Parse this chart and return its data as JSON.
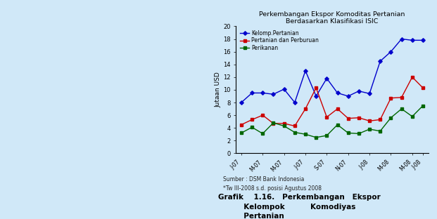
{
  "title_line1": "Perkembangan Ekspor Komoditas Pertanian",
  "title_line2": "Berdasarkan Klasifikasi ISIC",
  "ylabel": "Jutaan USD",
  "x_labels": [
    "J-07",
    "M-07",
    "M-07",
    "J-07",
    "S-07",
    "N-07",
    "J-08",
    "M-08",
    "M-08",
    "J-08"
  ],
  "kelomp_pertanian": [
    8.0,
    9.5,
    9.5,
    9.3,
    10.1,
    8.0,
    13.0,
    9.0,
    11.8,
    9.5,
    9.0,
    9.8,
    9.4,
    14.5,
    16.0,
    18.0,
    17.8,
    17.8
  ],
  "pertanian_perburuan": [
    4.5,
    5.3,
    6.0,
    4.7,
    4.7,
    4.3,
    7.0,
    10.3,
    5.7,
    7.0,
    5.5,
    5.6,
    5.1,
    5.3,
    8.7,
    8.8,
    12.0,
    10.3
  ],
  "perikanan": [
    3.2,
    4.1,
    3.1,
    4.8,
    4.3,
    3.3,
    3.0,
    2.5,
    2.8,
    4.5,
    3.2,
    3.1,
    3.8,
    3.5,
    5.6,
    7.0,
    5.8,
    7.5
  ],
  "color_kelomp": "#0000CC",
  "color_pertanian": "#CC0000",
  "color_perikanan": "#006600",
  "background_color": "#d0e8f8",
  "ylim": [
    0,
    20
  ],
  "yticks": [
    0,
    2,
    4,
    6,
    8,
    10,
    12,
    14,
    16,
    18,
    20
  ],
  "source_line1": "Sumber : DSM Bank Indonesia",
  "source_line2": "*Tw III-2008 s.d. posisi Agustus 2008",
  "caption_line1": "Grafik    1.16.   Perkembangan   Ekspor",
  "caption_line2": "          Kelompok          Komodiyas",
  "caption_line3": "          Pertanian"
}
